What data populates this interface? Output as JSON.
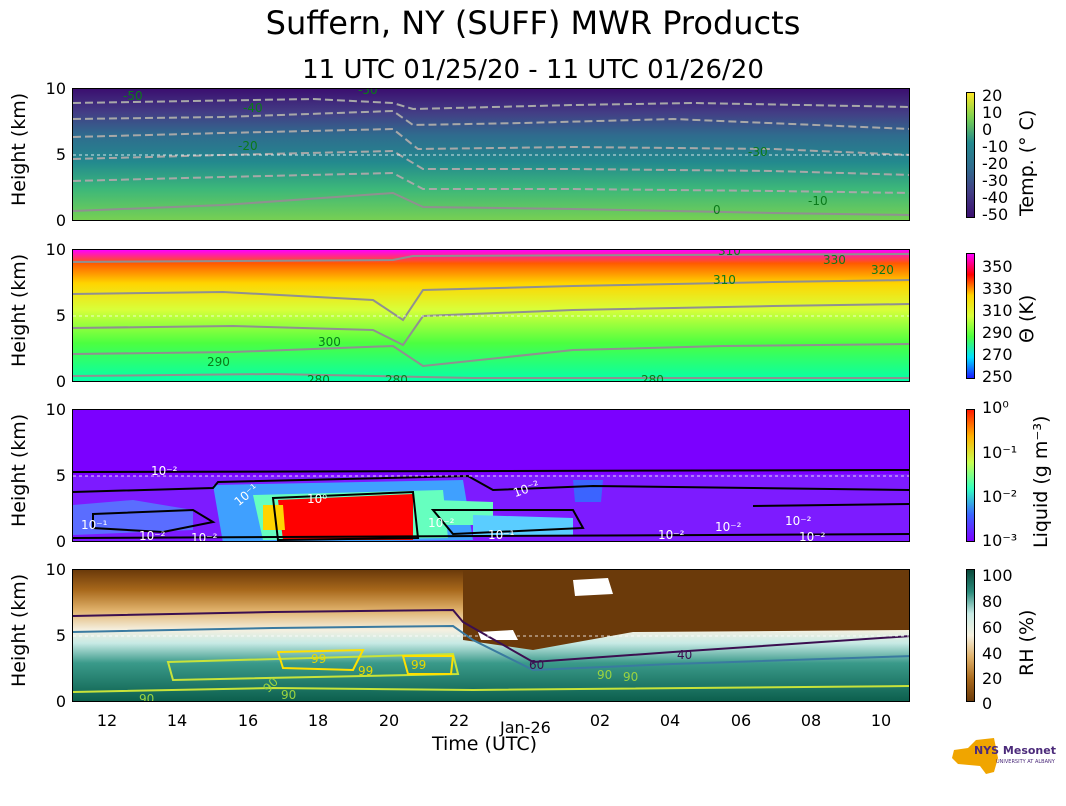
{
  "title": "Suffern, NY (SUFF) MWR Products",
  "subtitle": "11 UTC 01/25/20 - 11 UTC 01/26/20",
  "xlabel": "Time (UTC)",
  "x_ticks": [
    "12",
    "14",
    "16",
    "18",
    "20",
    "22",
    "02",
    "04",
    "06",
    "08",
    "10"
  ],
  "date_label": "Jan-26",
  "logo": {
    "text": "NYS Mesonet",
    "subtext": "UNIVERSITY AT ALBANY"
  },
  "colors": {
    "temp_low": "#3b0f70",
    "temp_high": "#7ad151",
    "theta_low": "#00e5c0",
    "theta_high": "#ff00ff",
    "liquid_bg": "#7b00ff",
    "liquid_high": "#ff0000",
    "rh_dry": "#6b3a0a",
    "rh_wet": "#0a5c4a"
  },
  "chart_data": [
    {
      "type": "heatmap",
      "name": "temperature",
      "ylabel": "Height (km)",
      "ylim": [
        0,
        10
      ],
      "y_ticks": [
        "10",
        "5",
        "0"
      ],
      "colorbar_label": "Temp. (° C)",
      "colorbar_ticks": [
        "20",
        "10",
        "0",
        "-10",
        "-20",
        "-30",
        "-40",
        "-50"
      ],
      "contour_labels": [
        "-50",
        "-40",
        "-50",
        "-20",
        "-30",
        "0",
        "-10"
      ]
    },
    {
      "type": "heatmap",
      "name": "potential_temperature",
      "ylabel": "Height (km)",
      "ylim": [
        0,
        10
      ],
      "y_ticks": [
        "10",
        "5",
        "0"
      ],
      "colorbar_label": "Θ (K)",
      "colorbar_ticks": [
        "350",
        "330",
        "310",
        "290",
        "270",
        "250"
      ],
      "contour_labels": [
        "310",
        "330",
        "320",
        "310",
        "300",
        "290",
        "280",
        "280",
        "280"
      ]
    },
    {
      "type": "heatmap",
      "name": "liquid",
      "ylabel": "Height (km)",
      "ylim": [
        0,
        10
      ],
      "y_ticks": [
        "10",
        "5",
        "0"
      ],
      "colorbar_label": "Liquid (g m⁻³)",
      "colorbar_ticks": [
        "10⁰",
        "10⁻¹",
        "10⁻²",
        "10⁻³"
      ],
      "contour_labels": [
        "10⁻²",
        "10⁻¹",
        "10⁰",
        "10⁻²",
        "10⁻¹",
        "10⁻²",
        "10⁻²",
        "10⁻¹",
        "10⁻²",
        "10⁻²",
        "10⁻²",
        "10⁻²",
        "10⁻²"
      ]
    },
    {
      "type": "heatmap",
      "name": "relative_humidity",
      "ylabel": "Height (km)",
      "ylim": [
        0,
        10
      ],
      "y_ticks": [
        "10",
        "5",
        "0"
      ],
      "colorbar_label": "RH (%)",
      "colorbar_ticks": [
        "100",
        "80",
        "60",
        "40",
        "20",
        "0"
      ],
      "contour_labels": [
        "99",
        "99",
        "99",
        "90",
        "90",
        "90",
        "60",
        "40",
        "90",
        "90"
      ]
    }
  ]
}
